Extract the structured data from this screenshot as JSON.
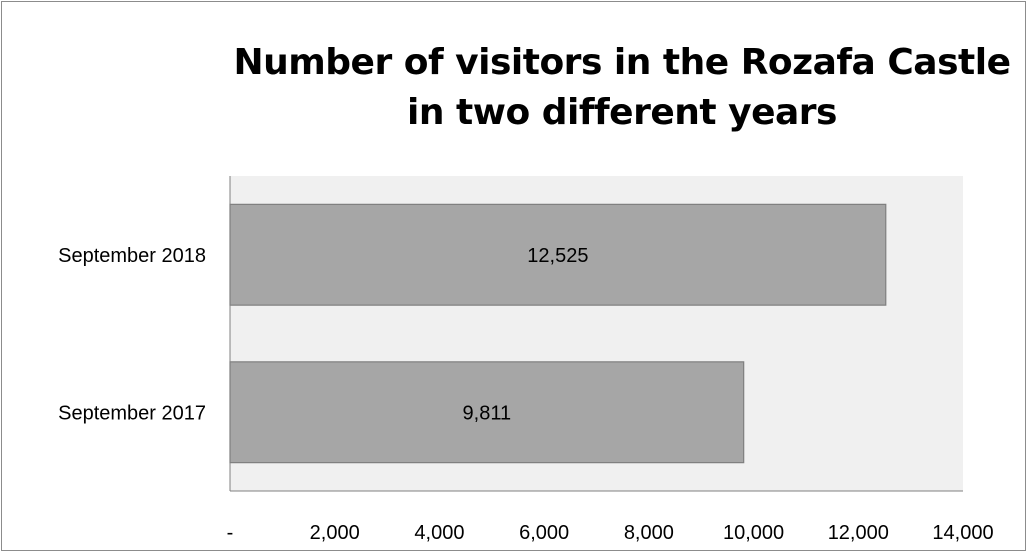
{
  "chart_data": {
    "type": "bar",
    "orientation": "horizontal",
    "title_lines": [
      "Number of visitors in the Rozafa Castle",
      "in two different years"
    ],
    "categories": [
      "September 2018",
      "September 2017"
    ],
    "values": [
      12525,
      9811
    ],
    "data_labels": [
      "12,525",
      "9,811"
    ],
    "xlim": [
      0,
      14000
    ],
    "x_ticks": [
      0,
      2000,
      4000,
      6000,
      8000,
      10000,
      12000,
      14000
    ],
    "x_tick_labels": [
      "-",
      "2,000",
      "4,000",
      "6,000",
      "8,000",
      "10,000",
      "12,000",
      "14,000"
    ],
    "grid": false,
    "legend": "none",
    "colors": {
      "bar_fill": "#a6a6a6",
      "bar_stroke": "#7f7f7f",
      "plot_background": "#f0f0f0",
      "axis": "#808080",
      "text": "#000000"
    }
  }
}
